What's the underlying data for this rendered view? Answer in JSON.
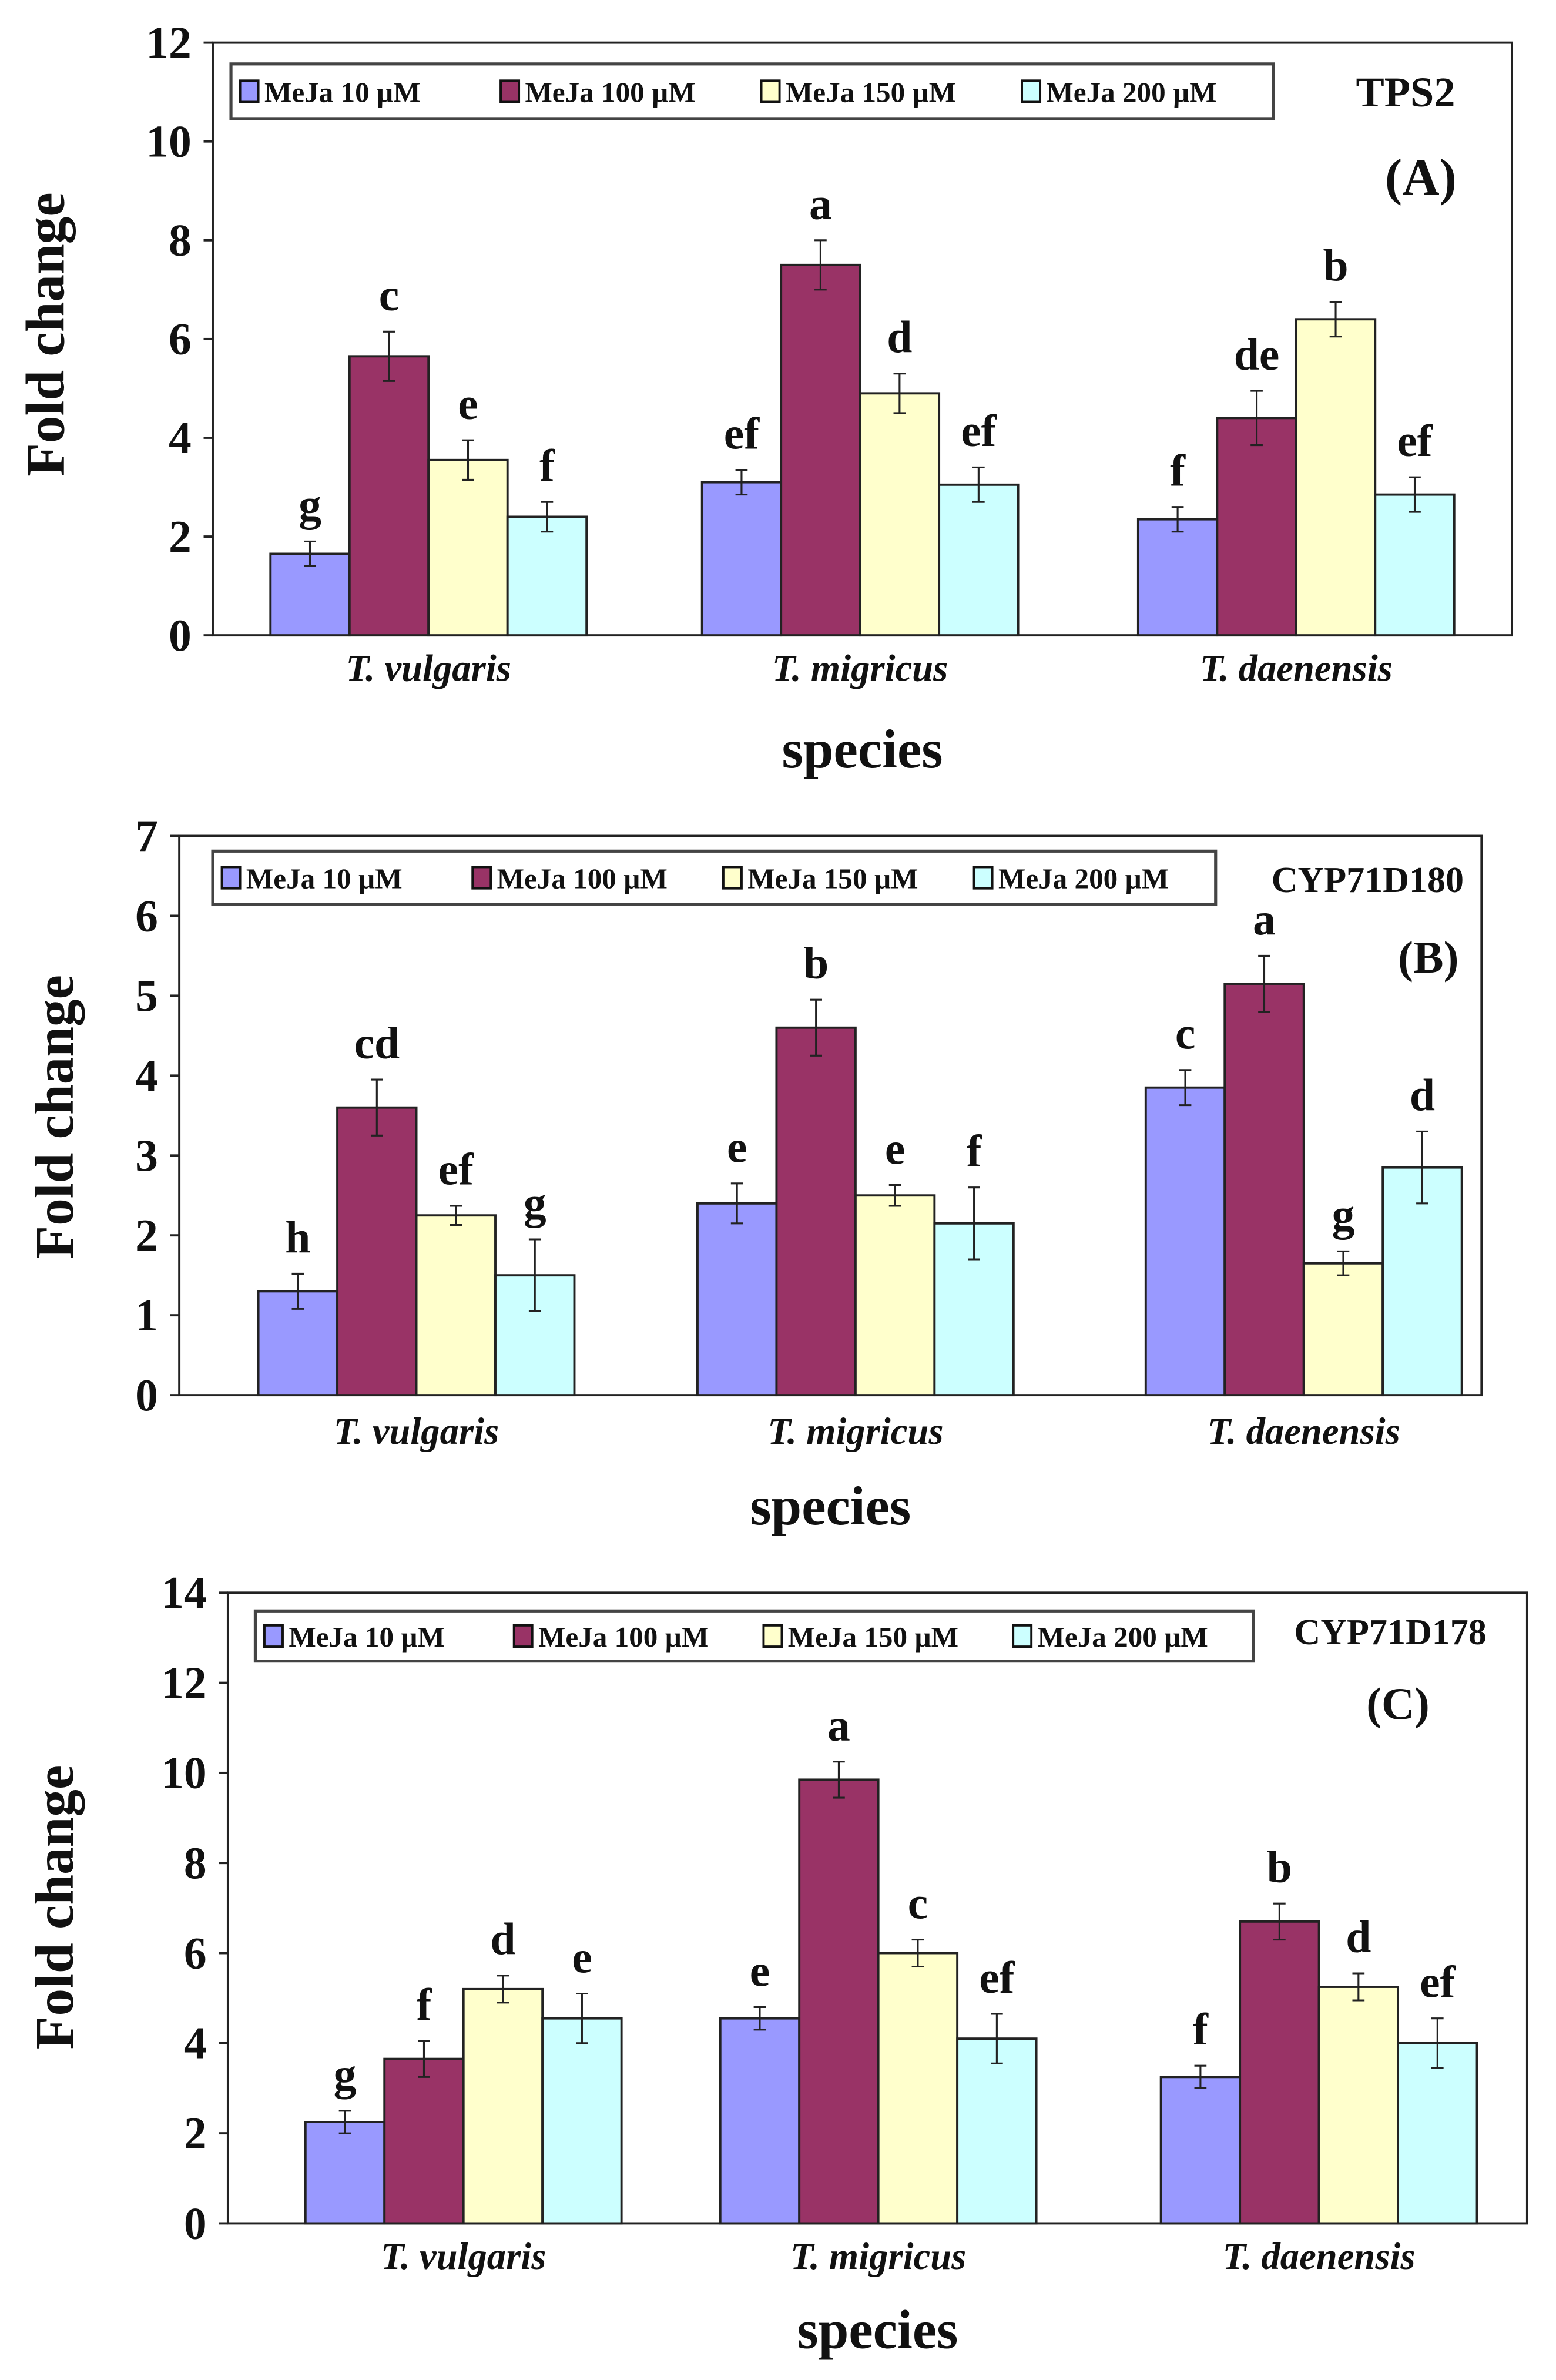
{
  "colors": [
    "#9999ff",
    "#993366",
    "#ffffcc",
    "#ccffff"
  ],
  "chart_data": [
    {
      "type": "bar",
      "title": "TPS2",
      "panel": "(A)",
      "xlabel": "species",
      "ylabel": "Fold change",
      "ylim": [
        0,
        12
      ],
      "yticks": [
        "0",
        "2",
        "4",
        "6",
        "8",
        "10",
        "12"
      ],
      "categories": [
        "T. vulgaris",
        "T. migricus",
        "T. daenensis"
      ],
      "legend_position": "top-left",
      "series": [
        {
          "name": "MeJa 10 µM",
          "values": [
            1.65,
            3.1,
            2.35
          ],
          "errors": [
            0.25,
            0.25,
            0.25
          ],
          "letters": [
            "g",
            "ef",
            "f"
          ]
        },
        {
          "name": "MeJa 100 µM",
          "values": [
            5.65,
            7.5,
            4.4
          ],
          "errors": [
            0.5,
            0.5,
            0.55
          ],
          "letters": [
            "c",
            "a",
            "de"
          ]
        },
        {
          "name": "MeJa 150 µM",
          "values": [
            3.55,
            4.9,
            6.4
          ],
          "errors": [
            0.4,
            0.4,
            0.35
          ],
          "letters": [
            "e",
            "d",
            "b"
          ]
        },
        {
          "name": "MeJa 200 µM",
          "values": [
            2.4,
            3.05,
            2.85
          ],
          "errors": [
            0.3,
            0.35,
            0.35
          ],
          "letters": [
            "f",
            "ef",
            "ef"
          ]
        }
      ]
    },
    {
      "type": "bar",
      "title": "CYP71D180",
      "panel": "(B)",
      "xlabel": "species",
      "ylabel": "Fold change",
      "ylim": [
        0,
        7
      ],
      "yticks": [
        "0",
        "1",
        "2",
        "3",
        "4",
        "5",
        "6",
        "7"
      ],
      "categories": [
        "T. vulgaris",
        "T. migricus",
        "T. daenensis"
      ],
      "legend_position": "top-left",
      "series": [
        {
          "name": "MeJa 10 µM",
          "values": [
            1.3,
            2.4,
            3.85
          ],
          "errors": [
            0.22,
            0.25,
            0.22
          ],
          "letters": [
            "h",
            "e",
            "c"
          ]
        },
        {
          "name": "MeJa 100 µM",
          "values": [
            3.6,
            4.6,
            5.15
          ],
          "errors": [
            0.35,
            0.35,
            0.35
          ],
          "letters": [
            "cd",
            "b",
            "a"
          ]
        },
        {
          "name": "MeJa 150 µM",
          "values": [
            2.25,
            2.5,
            1.65
          ],
          "errors": [
            0.12,
            0.13,
            0.15
          ],
          "letters": [
            "ef",
            "e",
            "g"
          ]
        },
        {
          "name": "MeJa 200 µM",
          "values": [
            1.5,
            2.15,
            2.85
          ],
          "errors": [
            0.45,
            0.45,
            0.45
          ],
          "letters": [
            "g",
            "f",
            "d"
          ]
        }
      ]
    },
    {
      "type": "bar",
      "title": "CYP71D178",
      "panel": "(C)",
      "xlabel": "species",
      "ylabel": "Fold change",
      "ylim": [
        0,
        14
      ],
      "yticks": [
        "0",
        "2",
        "4",
        "6",
        "8",
        "10",
        "12",
        "14"
      ],
      "categories": [
        "T. vulgaris",
        "T. migricus",
        "T. daenensis"
      ],
      "legend_position": "top-left",
      "series": [
        {
          "name": "MeJa 10 µM",
          "values": [
            2.25,
            4.55,
            3.25
          ],
          "errors": [
            0.25,
            0.25,
            0.25
          ],
          "letters": [
            "g",
            "e",
            "f"
          ]
        },
        {
          "name": "MeJa 100 µM",
          "values": [
            3.65,
            9.85,
            6.7
          ],
          "errors": [
            0.4,
            0.4,
            0.4
          ],
          "letters": [
            "f",
            "a",
            "b"
          ]
        },
        {
          "name": "MeJa 150 µM",
          "values": [
            5.2,
            6.0,
            5.25
          ],
          "errors": [
            0.3,
            0.3,
            0.3
          ],
          "letters": [
            "d",
            "c",
            "d"
          ]
        },
        {
          "name": "MeJa 200 µM",
          "values": [
            4.55,
            4.1,
            4.0
          ],
          "errors": [
            0.55,
            0.55,
            0.55
          ],
          "letters": [
            "e",
            "ef",
            "ef"
          ]
        }
      ]
    }
  ]
}
